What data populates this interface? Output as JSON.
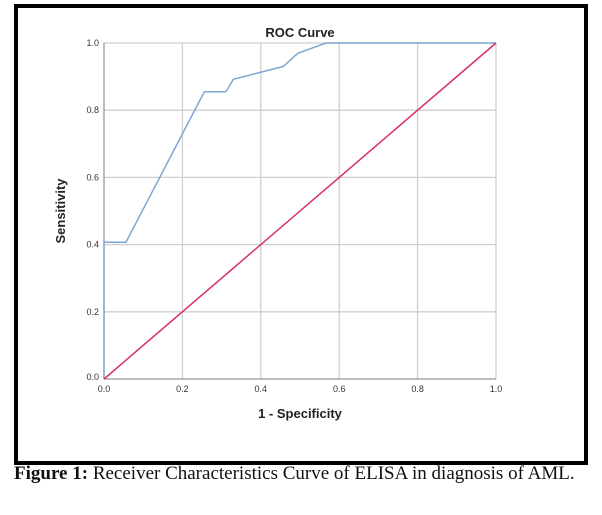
{
  "chart_data": {
    "type": "line",
    "title": "ROC Curve",
    "xlabel": "1 - Specificity",
    "ylabel": "Sensitivity",
    "xlim": [
      0,
      1
    ],
    "ylim": [
      0,
      1
    ],
    "xticks": [
      "0.0",
      "0.2",
      "0.4",
      "0.6",
      "0.8",
      "1.0"
    ],
    "yticks": [
      "0.0",
      "0.2",
      "0.4",
      "0.6",
      "0.8",
      "1.0"
    ],
    "grid": true,
    "series": [
      {
        "color": "#7fa6d6",
        "x": [
          0,
          0,
          0.056,
          0.256,
          0.311,
          0.33,
          0.457,
          0.494,
          0.566,
          1
        ],
        "y": [
          0,
          0.407,
          0.407,
          0.855,
          0.855,
          0.892,
          0.93,
          0.969,
          1,
          1
        ]
      },
      {
        "color": "#d8305c",
        "x": [
          0,
          1
        ],
        "y": [
          0,
          1
        ]
      }
    ]
  },
  "caption": {
    "label": "Figure 1:",
    "text": " Receiver Characteristics Curve of ELISA in diagnosis of AML."
  }
}
